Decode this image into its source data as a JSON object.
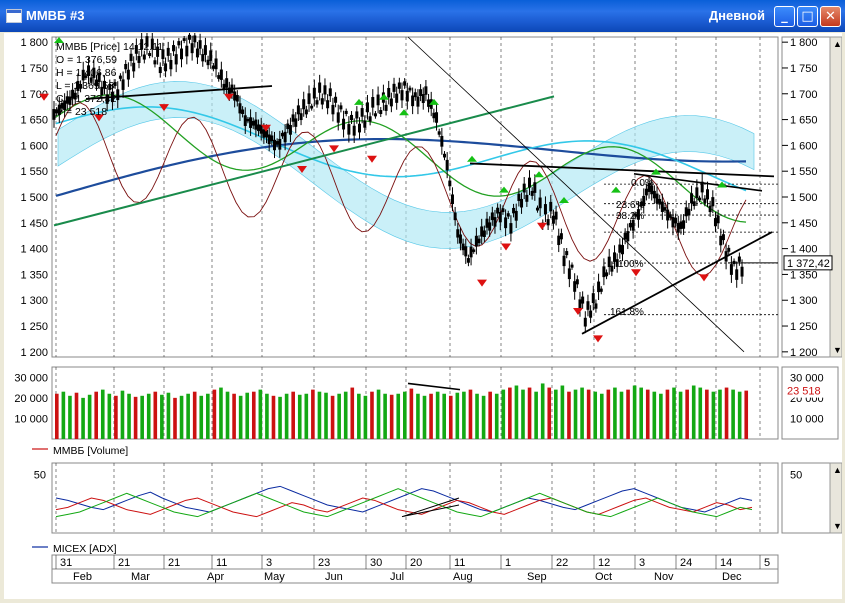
{
  "window": {
    "title": "ММВБ #3",
    "period": "Дневной",
    "buttons": {
      "minimize": "_",
      "maximize": "□",
      "close": "✕"
    }
  },
  "colors": {
    "price": "#000000",
    "bars_up": "#13a813",
    "bars_down": "#cc1111",
    "ma_blue": "#1d4c9c",
    "ma_cyan": "#33c8e8",
    "ma_green": "#22a022",
    "ichimoku_fill": "#aee8f4",
    "dark_red": "#7a1010",
    "arrow_up": "#15c015",
    "arrow_down": "#dd1111",
    "trend_green": "#198b4b",
    "adx_blue": "#0a2aa0"
  },
  "chart_data": [
    {
      "type": "candlestick",
      "panel": "price",
      "legend": {
        "name_label": "ММВБ [Price] 14.12.11",
        "o_label": "O = 1 376,59",
        "h_label": "H = 1 406,86",
        "l_label": "L = 1 369,53",
        "c_label": "C = 1 372,42",
        "v_label": "V = 23 518"
      },
      "ylim": [
        1190,
        1810
      ],
      "y_ticks": [
        "1 800",
        "1 750",
        "1 700",
        "1 650",
        "1 600",
        "1 550",
        "1 500",
        "1 450",
        "1 400",
        "1 350",
        "1 300",
        "1 250",
        "1 200"
      ],
      "last_value": "1 372,42",
      "fib_labels": {
        "f0": "0.0%",
        "f236": "23.6%",
        "f382": "38.2%",
        "f100": "100%",
        "f1618": "161.8%"
      },
      "close_path": [
        [
          0,
          1660
        ],
        [
          4,
          1680
        ],
        [
          8,
          1700
        ],
        [
          12,
          1740
        ],
        [
          16,
          1730
        ],
        [
          20,
          1700
        ],
        [
          24,
          1710
        ],
        [
          28,
          1750
        ],
        [
          32,
          1780
        ],
        [
          36,
          1790
        ],
        [
          40,
          1760
        ],
        [
          44,
          1770
        ],
        [
          48,
          1790
        ],
        [
          52,
          1800
        ],
        [
          56,
          1780
        ],
        [
          60,
          1760
        ],
        [
          64,
          1720
        ],
        [
          68,
          1700
        ],
        [
          72,
          1650
        ],
        [
          76,
          1640
        ],
        [
          80,
          1620
        ],
        [
          84,
          1600
        ],
        [
          88,
          1630
        ],
        [
          92,
          1660
        ],
        [
          96,
          1680
        ],
        [
          100,
          1700
        ],
        [
          104,
          1690
        ],
        [
          108,
          1660
        ],
        [
          112,
          1640
        ],
        [
          116,
          1650
        ],
        [
          120,
          1670
        ],
        [
          124,
          1680
        ],
        [
          128,
          1700
        ],
        [
          132,
          1710
        ],
        [
          136,
          1690
        ],
        [
          140,
          1700
        ],
        [
          144,
          1650
        ],
        [
          148,
          1560
        ],
        [
          152,
          1430
        ],
        [
          156,
          1380
        ],
        [
          160,
          1420
        ],
        [
          164,
          1450
        ],
        [
          168,
          1470
        ],
        [
          172,
          1450
        ],
        [
          176,
          1500
        ],
        [
          180,
          1520
        ],
        [
          184,
          1460
        ],
        [
          188,
          1470
        ],
        [
          192,
          1390
        ],
        [
          196,
          1340
        ],
        [
          200,
          1270
        ],
        [
          204,
          1300
        ],
        [
          208,
          1360
        ],
        [
          212,
          1380
        ],
        [
          216,
          1430
        ],
        [
          220,
          1470
        ],
        [
          224,
          1520
        ],
        [
          228,
          1490
        ],
        [
          232,
          1460
        ],
        [
          236,
          1440
        ],
        [
          240,
          1490
        ],
        [
          244,
          1510
        ],
        [
          248,
          1480
        ],
        [
          252,
          1410
        ],
        [
          256,
          1360
        ],
        [
          260,
          1372
        ]
      ],
      "x_range": [
        0,
        262
      ]
    },
    {
      "type": "bar",
      "panel": "volume",
      "series_label": "MMBБ [Volume]",
      "ylim": [
        0,
        35000
      ],
      "y_ticks": [
        "30 000",
        "20 000",
        "10 000"
      ],
      "last_value": "23 518",
      "values": [
        22000,
        23000,
        21000,
        22500,
        20000,
        21500,
        23000,
        24000,
        22000,
        21000,
        23500,
        22000,
        20500,
        21000,
        22000,
        23000,
        21500,
        22500,
        20000,
        21000,
        22000,
        23000,
        21000,
        22000,
        24000,
        25000,
        23000,
        22000,
        21000,
        22500,
        23000,
        24000,
        22000,
        21000,
        20500,
        22000,
        23000,
        21500,
        22000,
        24000,
        23000,
        22500,
        21000,
        22000,
        23000,
        25000,
        22000,
        21000,
        23000,
        24000,
        22000,
        21500,
        22000,
        23000,
        24500,
        22000,
        21000,
        22000,
        23000,
        22000,
        21000,
        22500,
        23000,
        24000,
        22000,
        21000,
        23000,
        22000,
        24000,
        25000,
        26000,
        24000,
        25000,
        23000,
        27000,
        25000,
        24000,
        26000,
        23000,
        24000,
        25000,
        24000,
        23000,
        22000,
        24000,
        25000,
        23000,
        24000,
        26000,
        25000,
        24000,
        23000,
        22000,
        24000,
        25000,
        23000,
        24000,
        26000,
        25000,
        24000,
        23000,
        24000,
        25000,
        24000,
        23000,
        23518
      ]
    },
    {
      "type": "line",
      "panel": "adx",
      "series_label": "MICEX [ADX]",
      "ylim": [
        0,
        60
      ],
      "y_ticks": [
        "50"
      ],
      "series": [
        {
          "color": "#0a2aa0",
          "values": [
            30,
            28,
            25,
            22,
            20,
            24,
            28,
            32,
            35,
            30,
            26,
            22,
            20,
            18,
            22,
            26,
            30,
            34,
            38,
            40,
            36,
            32,
            28,
            24,
            22,
            20,
            18,
            22,
            26,
            30,
            34,
            38,
            36,
            32,
            28,
            24,
            20,
            18,
            22,
            26,
            30,
            28,
            25,
            22,
            20,
            24,
            28,
            32,
            36,
            38,
            34,
            30,
            26,
            22,
            20,
            18,
            22,
            26,
            30,
            28
          ]
        },
        {
          "color": "#cc1111",
          "values": [
            20,
            22,
            26,
            30,
            28,
            24,
            20,
            18,
            16,
            20,
            24,
            28,
            30,
            26,
            22,
            18,
            16,
            14,
            18,
            22,
            26,
            24,
            20,
            18,
            22,
            26,
            30,
            28,
            24,
            20,
            18,
            16,
            20,
            24,
            28,
            26,
            22,
            18,
            16,
            20,
            24,
            28,
            30,
            26,
            22,
            18,
            16,
            20,
            24,
            28,
            30,
            26,
            22,
            20,
            18,
            22,
            26,
            24,
            20,
            22
          ]
        },
        {
          "color": "#13a813",
          "values": [
            14,
            16,
            18,
            22,
            26,
            30,
            34,
            30,
            26,
            22,
            18,
            16,
            14,
            18,
            22,
            26,
            30,
            34,
            30,
            26,
            22,
            18,
            16,
            14,
            18,
            22,
            26,
            30,
            34,
            38,
            34,
            30,
            26,
            22,
            18,
            16,
            14,
            18,
            22,
            26,
            30,
            34,
            30,
            26,
            22,
            18,
            16,
            14,
            18,
            22,
            26,
            30,
            26,
            22,
            18,
            16,
            14,
            18,
            22,
            20
          ]
        }
      ]
    }
  ],
  "x_axis": {
    "day_labels": [
      "31",
      "21",
      "21",
      "11",
      "3",
      "23",
      "30",
      "20",
      "11",
      "1",
      "22",
      "12",
      "3",
      "24",
      "14",
      "5"
    ],
    "month_labels": [
      "Feb",
      "Mar",
      "Apr",
      "May",
      "Jun",
      "Jul",
      "Aug",
      "Sep",
      "Oct",
      "Nov",
      "Dec"
    ]
  }
}
